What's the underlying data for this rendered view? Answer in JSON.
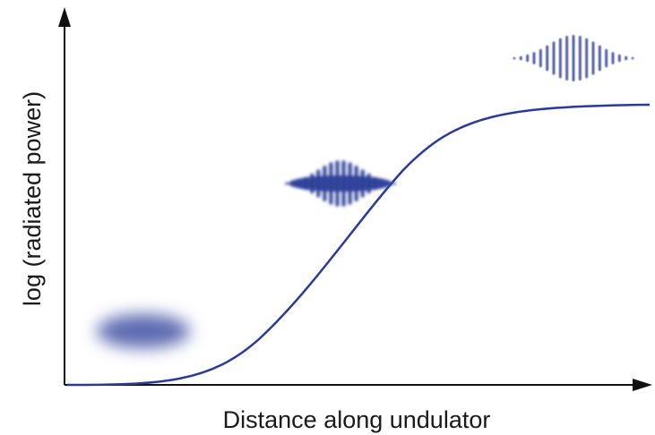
{
  "axes": {
    "x_label": "Distance along undulator",
    "y_label": "log (radiated power)"
  }
}
